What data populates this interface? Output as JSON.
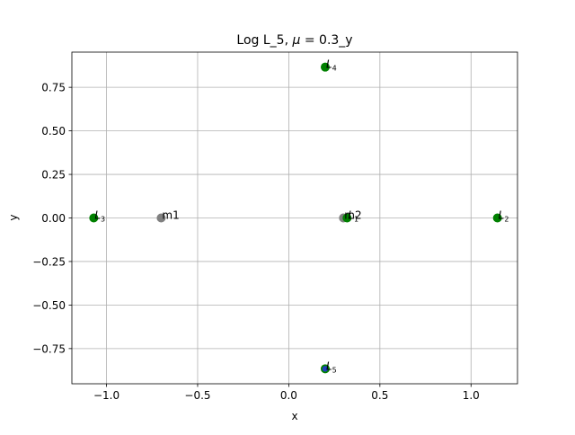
{
  "chart_data": {
    "type": "scatter",
    "title_prefix": "Log L_5, ",
    "title_mu": "μ",
    "title_suffix": " = 0.3_y",
    "xlabel": "x",
    "ylabel": "y",
    "xlim": [
      -1.19,
      1.255
    ],
    "ylim": [
      -0.952,
      0.952
    ],
    "xticks": [
      -1.0,
      -0.5,
      0.0,
      0.5,
      1.0
    ],
    "xtick_labels": [
      "−1.0",
      "−0.5",
      "0.0",
      "0.5",
      "1.0"
    ],
    "yticks": [
      -0.75,
      -0.5,
      -0.25,
      0.0,
      0.25,
      0.5,
      0.75
    ],
    "ytick_labels": [
      "−0.75",
      "−0.50",
      "−0.25",
      "0.00",
      "0.25",
      "0.50",
      "0.75"
    ],
    "grid": true,
    "masses": [
      {
        "name": "m1",
        "x": -0.7,
        "y": 0.0,
        "color": "#808080"
      },
      {
        "name": "m2",
        "x": 0.3,
        "y": 0.0,
        "color": "#808080"
      }
    ],
    "lagrange_points": [
      {
        "name": "L1",
        "letter": "L",
        "sub": "1",
        "x": 0.32,
        "y": 0.0,
        "color": "#008000"
      },
      {
        "name": "L2",
        "letter": "L",
        "sub": "2",
        "x": 1.145,
        "y": 0.0,
        "color": "#008000"
      },
      {
        "name": "L3",
        "letter": "L",
        "sub": "3",
        "x": -1.07,
        "y": 0.0,
        "color": "#008000"
      },
      {
        "name": "L4",
        "letter": "L",
        "sub": "4",
        "x": 0.2,
        "y": 0.866,
        "color": "#008000"
      },
      {
        "name": "L5",
        "letter": "L",
        "sub": "5",
        "x": 0.2,
        "y": -0.866,
        "color": "#008000"
      }
    ],
    "highlight": {
      "name": "L5",
      "x": 0.2,
      "y": -0.866,
      "color": "#1f3fbf"
    }
  }
}
